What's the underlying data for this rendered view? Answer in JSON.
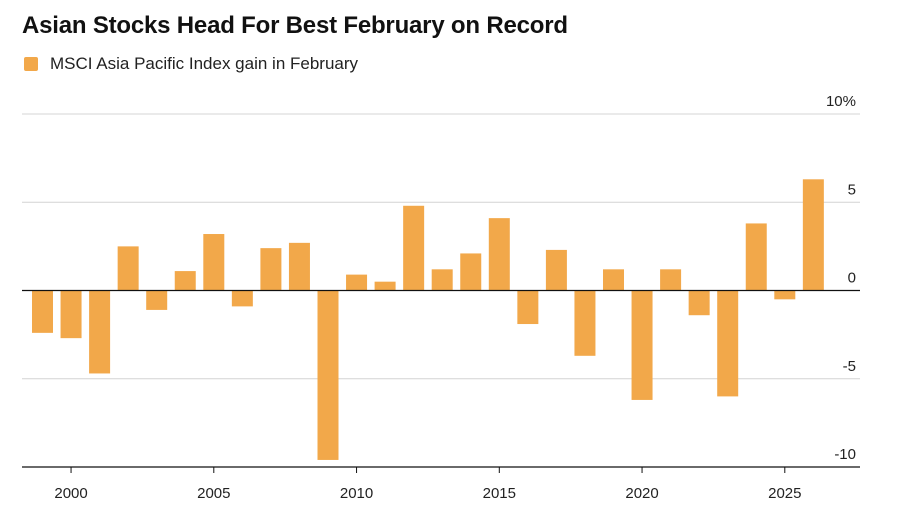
{
  "chart_data": {
    "type": "bar",
    "title": "Asian Stocks Head For Best February on Record",
    "legend": [
      {
        "label": "MSCI Asia Pacific Index gain in February",
        "color": "#f2a84a"
      }
    ],
    "x": [
      1999,
      2000,
      2001,
      2002,
      2003,
      2004,
      2005,
      2006,
      2007,
      2008,
      2009,
      2010,
      2011,
      2012,
      2013,
      2014,
      2015,
      2016,
      2017,
      2018,
      2019,
      2020,
      2021,
      2022,
      2023,
      2024,
      2025,
      2026
    ],
    "values": [
      -2.4,
      -2.7,
      -4.7,
      2.5,
      -1.1,
      1.1,
      3.2,
      -0.9,
      2.4,
      2.7,
      -9.6,
      0.9,
      0.5,
      4.8,
      1.2,
      2.1,
      4.1,
      -1.9,
      2.3,
      -3.7,
      1.2,
      -6.2,
      1.2,
      -1.4,
      -6.0,
      3.8,
      -0.5,
      6.3
    ],
    "xticks": [
      2000,
      2005,
      2010,
      2015,
      2020,
      2025
    ],
    "xtick_labels": [
      "2000",
      "2005",
      "2010",
      "2015",
      "2020",
      "2025"
    ],
    "yticks": [
      10,
      5,
      0,
      -5,
      -10
    ],
    "ytick_labels": [
      "10%",
      "5",
      "0",
      "-5",
      "-10"
    ],
    "ylim": [
      -10,
      10
    ],
    "xlim": [
      1998.5,
      2026.5
    ],
    "grid": true,
    "bar_color": "#f2a84a",
    "xlabel": "",
    "ylabel": ""
  }
}
